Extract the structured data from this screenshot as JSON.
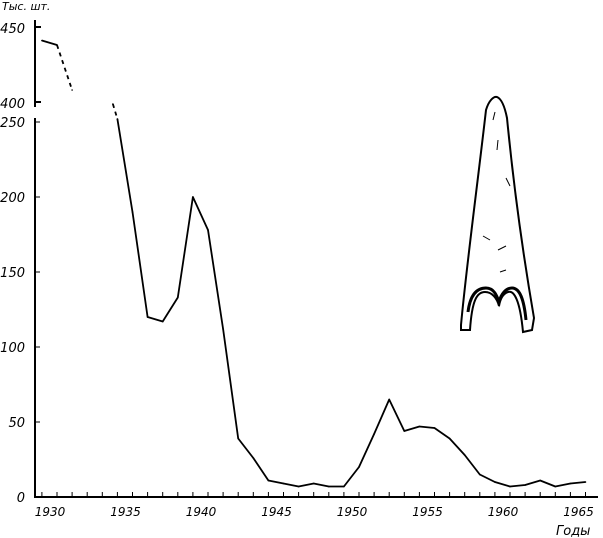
{
  "chart_data": {
    "type": "line",
    "title": "",
    "xlabel": "Годы",
    "ylabel": "Тыс. шт.",
    "xlim": [
      1929,
      1965
    ],
    "ylim_lower": [
      0,
      250
    ],
    "ylim_upper": [
      400,
      450
    ],
    "broken_y_axis": true,
    "grid": false,
    "x_ticks": [
      "1930",
      "1935",
      "1940",
      "1945",
      "1950",
      "1955",
      "1960",
      "1965"
    ],
    "y_ticks_lower": [
      "0",
      "50",
      "100",
      "150",
      "200",
      "250"
    ],
    "y_ticks_upper": [
      "400",
      "450"
    ],
    "series": [
      {
        "segment": "upper",
        "x": [
          1929,
          1930
        ],
        "y": [
          441,
          438
        ],
        "style": "solid"
      },
      {
        "segment": "upper",
        "x": [
          1930,
          1931
        ],
        "y": [
          438,
          408
        ],
        "style": "dashed"
      },
      {
        "segment": "lower",
        "x": [
          1933.7,
          1934
        ],
        "y": [
          262,
          252
        ],
        "style": "dashed"
      },
      {
        "segment": "lower",
        "x": [
          1934,
          1935,
          1936,
          1937,
          1938,
          1939,
          1940,
          1941,
          1942,
          1943,
          1944,
          1945,
          1946,
          1947,
          1948,
          1949,
          1950,
          1951,
          1952,
          1953,
          1954,
          1955,
          1956,
          1957,
          1958,
          1959,
          1960,
          1961,
          1962,
          1963,
          1964,
          1965
        ],
        "y": [
          252,
          190,
          120,
          117,
          133,
          200,
          178,
          112,
          39,
          26,
          11,
          9,
          7,
          9,
          7,
          7,
          20,
          42,
          65,
          44,
          47,
          46,
          39,
          28,
          15,
          10,
          7,
          8,
          11,
          7,
          9,
          10
        ],
        "style": "solid"
      }
    ],
    "inset_illustration": "tooth-drawing"
  }
}
